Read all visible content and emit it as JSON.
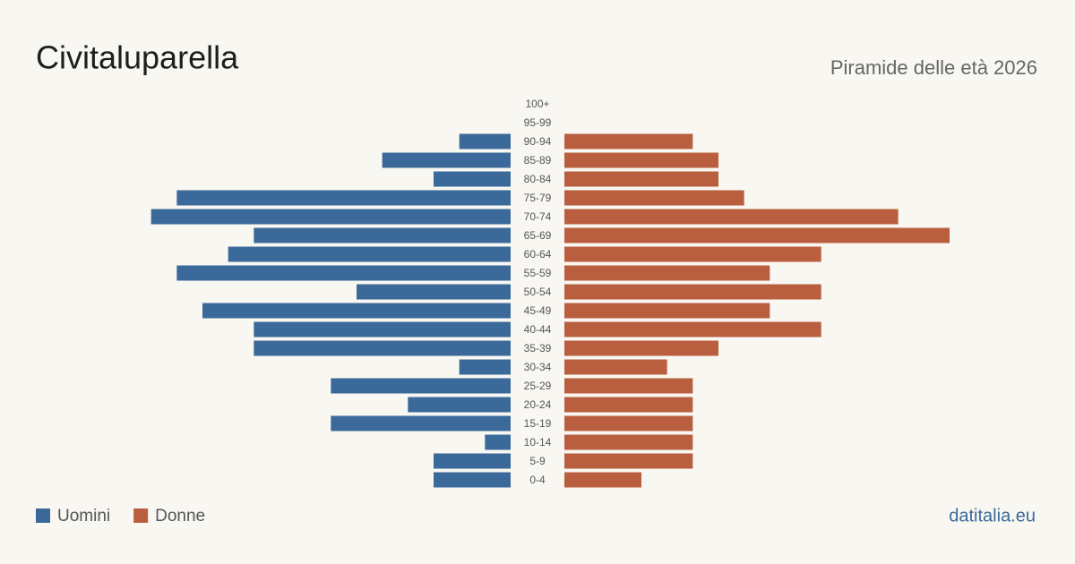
{
  "chart_data": {
    "type": "pyramid",
    "title": "Civitaluparella",
    "subtitle": "Piramide delle età 2026",
    "source": "datitalia.eu",
    "categories": [
      "100+",
      "95-99",
      "90-94",
      "85-89",
      "80-84",
      "75-79",
      "70-74",
      "65-69",
      "60-64",
      "55-59",
      "50-54",
      "45-49",
      "40-44",
      "35-39",
      "30-34",
      "25-29",
      "20-24",
      "15-19",
      "10-14",
      "5-9",
      "0-4"
    ],
    "series": [
      {
        "name": "Uomini",
        "color": "#3b6a9a",
        "values": [
          0,
          0,
          2,
          5,
          3,
          13,
          14,
          10,
          11,
          13,
          6,
          12,
          10,
          10,
          2,
          7,
          4,
          7,
          1,
          3,
          3
        ]
      },
      {
        "name": "Donne",
        "color": "#b95f3f",
        "values": [
          0,
          0,
          5,
          6,
          6,
          7,
          13,
          15,
          10,
          8,
          10,
          8,
          10,
          6,
          4,
          5,
          5,
          5,
          5,
          5,
          3
        ]
      }
    ]
  }
}
